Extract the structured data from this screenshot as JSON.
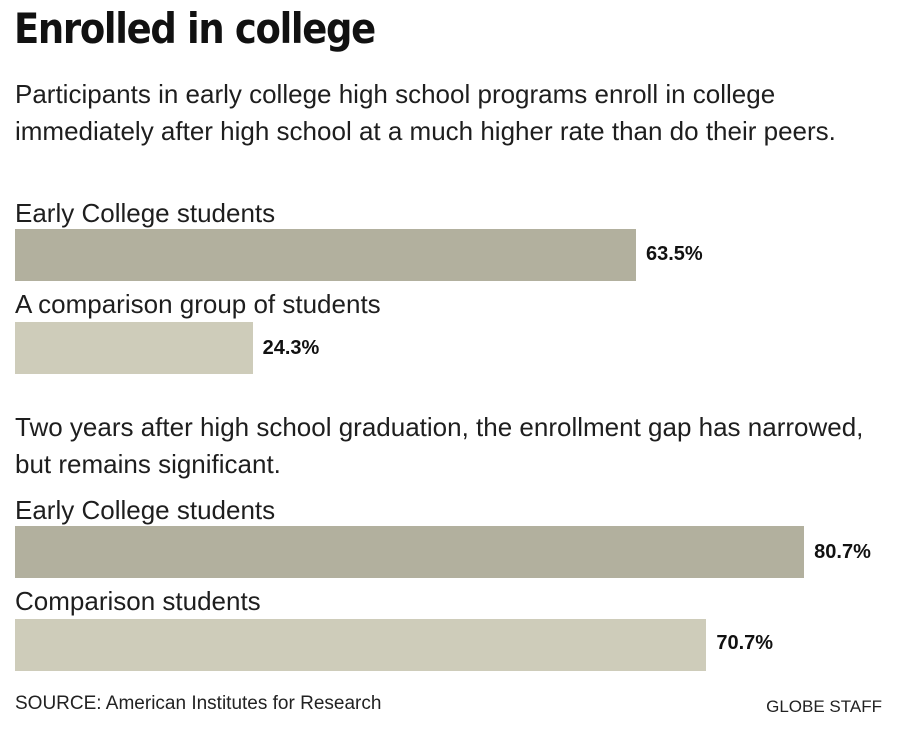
{
  "header": {
    "title": "Enrolled in college"
  },
  "chart_data": [
    {
      "type": "bar",
      "orientation": "horizontal",
      "title": "Participants in early college high school programs enroll in college immediately after high school at a much higher rate than do their peers.",
      "unit": "%",
      "xlim": [
        0,
        81.5
      ],
      "categories": [
        "Early College students",
        "A comparison group of students"
      ],
      "values": [
        63.5,
        24.3
      ],
      "value_labels": [
        "63.5%",
        "24.3%"
      ],
      "colors": [
        "#b2b09e",
        "#ceccba"
      ]
    },
    {
      "type": "bar",
      "orientation": "horizontal",
      "title": "Two years after high school graduation, the enrollment gap has narrowed, but remains significant.",
      "unit": "%",
      "xlim": [
        0,
        81.5
      ],
      "categories": [
        "Early College students",
        "Comparison students"
      ],
      "values": [
        80.7,
        70.7
      ],
      "value_labels": [
        "80.7%",
        "70.7%"
      ],
      "colors": [
        "#b2b09e",
        "#ceccba"
      ]
    }
  ],
  "footer": {
    "source": "SOURCE: American Institutes for Research",
    "credit": "GLOBE STAFF"
  }
}
